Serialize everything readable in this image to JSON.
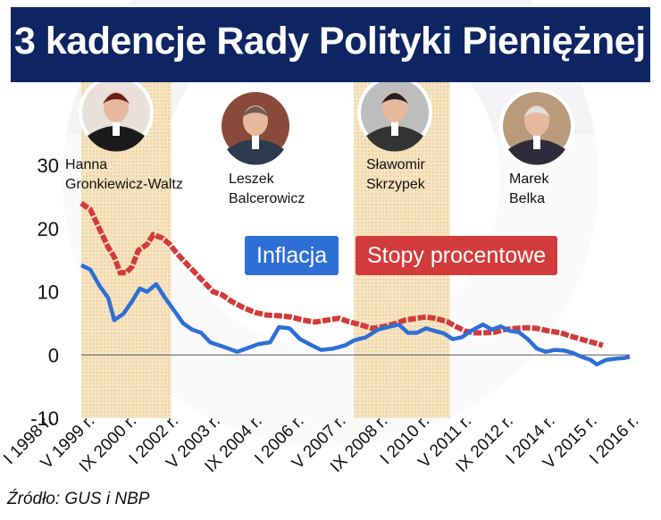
{
  "title": "3 kadencje Rady Polityki Pieniężnej",
  "source": "Źródło: GUS i NBP",
  "legend": {
    "inflation": "Inflacja",
    "rates": "Stopy procentowe"
  },
  "colors": {
    "inflation": "#2e6fd6",
    "rates": "#d23b3b",
    "band": "#f3dcb4",
    "title_bg": "#0f2463"
  },
  "people": [
    {
      "line1": "Hanna",
      "line2": "Gronkiewicz-Waltz"
    },
    {
      "line1": "Leszek",
      "line2": "Balcerowicz"
    },
    {
      "line1": "Sławomir",
      "line2": "Skrzypek"
    },
    {
      "line1": "Marek",
      "line2": "Belka"
    }
  ],
  "chart_data": {
    "type": "line",
    "title": "3 kadencje Rady Polityki Pieniężnej",
    "ylim": [
      -10,
      30
    ],
    "yticks": [
      30,
      20,
      10,
      0,
      -10
    ],
    "xticks": [
      "I 1998 r.",
      "V 1999 r.",
      "IX 2000 r.",
      "I 2002 r.",
      "V 2003 r.",
      "IX 2004 r.",
      "I 2006 r.",
      "V 2007 r.",
      "IX 2008 r.",
      "I 2010 r.",
      "V 2011 r.",
      "IX 2012 r.",
      "I 2014 r.",
      "V 2015 r.",
      "I 2016 r."
    ],
    "shaded_periods": [
      {
        "from": 1998.0,
        "to": 2001.0
      },
      {
        "from": 2007.1,
        "to": 2010.3
      }
    ],
    "series": [
      {
        "name": "Inflacja",
        "points": [
          [
            1998.0,
            14.2
          ],
          [
            1998.3,
            13.5
          ],
          [
            1998.6,
            11.0
          ],
          [
            1998.9,
            9.0
          ],
          [
            1999.1,
            5.5
          ],
          [
            1999.4,
            6.5
          ],
          [
            1999.7,
            8.5
          ],
          [
            1999.95,
            10.5
          ],
          [
            2000.2,
            10.0
          ],
          [
            2000.5,
            11.2
          ],
          [
            2000.8,
            9.0
          ],
          [
            2001.1,
            7.0
          ],
          [
            2001.4,
            5.0
          ],
          [
            2001.7,
            4.0
          ],
          [
            2002.0,
            3.5
          ],
          [
            2002.3,
            2.0
          ],
          [
            2002.8,
            1.2
          ],
          [
            2003.2,
            0.5
          ],
          [
            2003.5,
            1.0
          ],
          [
            2003.9,
            1.7
          ],
          [
            2004.3,
            2.0
          ],
          [
            2004.6,
            4.4
          ],
          [
            2004.95,
            4.2
          ],
          [
            2005.3,
            2.5
          ],
          [
            2005.7,
            1.5
          ],
          [
            2006.0,
            0.8
          ],
          [
            2006.4,
            1.0
          ],
          [
            2006.8,
            1.5
          ],
          [
            2007.1,
            2.3
          ],
          [
            2007.5,
            2.8
          ],
          [
            2007.9,
            4.0
          ],
          [
            2008.3,
            4.5
          ],
          [
            2008.6,
            4.8
          ],
          [
            2008.9,
            3.5
          ],
          [
            2009.2,
            3.5
          ],
          [
            2009.5,
            4.2
          ],
          [
            2009.8,
            3.8
          ],
          [
            2010.1,
            3.4
          ],
          [
            2010.4,
            2.5
          ],
          [
            2010.7,
            2.8
          ],
          [
            2011.0,
            3.8
          ],
          [
            2011.4,
            4.8
          ],
          [
            2011.7,
            4.0
          ],
          [
            2012.0,
            4.5
          ],
          [
            2012.3,
            3.8
          ],
          [
            2012.6,
            3.6
          ],
          [
            2012.9,
            2.5
          ],
          [
            2013.2,
            1.0
          ],
          [
            2013.5,
            0.5
          ],
          [
            2013.8,
            0.8
          ],
          [
            2014.1,
            0.7
          ],
          [
            2014.4,
            0.3
          ],
          [
            2014.7,
            -0.3
          ],
          [
            2015.0,
            -0.8
          ],
          [
            2015.2,
            -1.5
          ],
          [
            2015.5,
            -0.8
          ],
          [
            2015.8,
            -0.6
          ],
          [
            2016.1,
            -0.5
          ],
          [
            2016.3,
            -0.3
          ]
        ]
      },
      {
        "name": "Stopy procentowe",
        "points": [
          [
            1998.0,
            24.0
          ],
          [
            1998.3,
            23.0
          ],
          [
            1998.5,
            21.0
          ],
          [
            1998.7,
            19.0
          ],
          [
            1998.9,
            17.0
          ],
          [
            1999.1,
            15.5
          ],
          [
            1999.3,
            13.0
          ],
          [
            1999.5,
            13.0
          ],
          [
            1999.7,
            14.0
          ],
          [
            1999.9,
            16.5
          ],
          [
            2000.2,
            17.5
          ],
          [
            2000.4,
            19.0
          ],
          [
            2000.7,
            18.5
          ],
          [
            2000.95,
            17.5
          ],
          [
            2001.2,
            16.0
          ],
          [
            2001.5,
            14.5
          ],
          [
            2001.8,
            13.0
          ],
          [
            2002.1,
            11.5
          ],
          [
            2002.4,
            10.0
          ],
          [
            2002.7,
            9.5
          ],
          [
            2003.0,
            8.5
          ],
          [
            2003.4,
            7.5
          ],
          [
            2003.8,
            6.7
          ],
          [
            2004.2,
            6.3
          ],
          [
            2004.6,
            6.2
          ],
          [
            2005.0,
            6.0
          ],
          [
            2005.4,
            5.5
          ],
          [
            2005.8,
            5.2
          ],
          [
            2006.2,
            5.5
          ],
          [
            2006.6,
            5.8
          ],
          [
            2006.9,
            5.3
          ],
          [
            2007.3,
            4.8
          ],
          [
            2007.7,
            4.2
          ],
          [
            2008.1,
            4.5
          ],
          [
            2008.5,
            5.0
          ],
          [
            2008.8,
            5.5
          ],
          [
            2009.2,
            5.8
          ],
          [
            2009.5,
            6.0
          ],
          [
            2009.8,
            5.8
          ],
          [
            2010.2,
            5.3
          ],
          [
            2010.5,
            4.5
          ],
          [
            2010.8,
            3.8
          ],
          [
            2011.1,
            3.5
          ],
          [
            2011.4,
            3.5
          ],
          [
            2011.8,
            3.6
          ],
          [
            2012.1,
            4.0
          ],
          [
            2012.5,
            4.2
          ],
          [
            2012.9,
            4.3
          ],
          [
            2013.2,
            4.2
          ],
          [
            2013.6,
            3.8
          ],
          [
            2014.0,
            3.5
          ],
          [
            2014.3,
            3.0
          ],
          [
            2014.6,
            2.6
          ],
          [
            2014.9,
            2.2
          ],
          [
            2015.2,
            1.8
          ],
          [
            2015.4,
            1.5
          ]
        ]
      }
    ]
  }
}
